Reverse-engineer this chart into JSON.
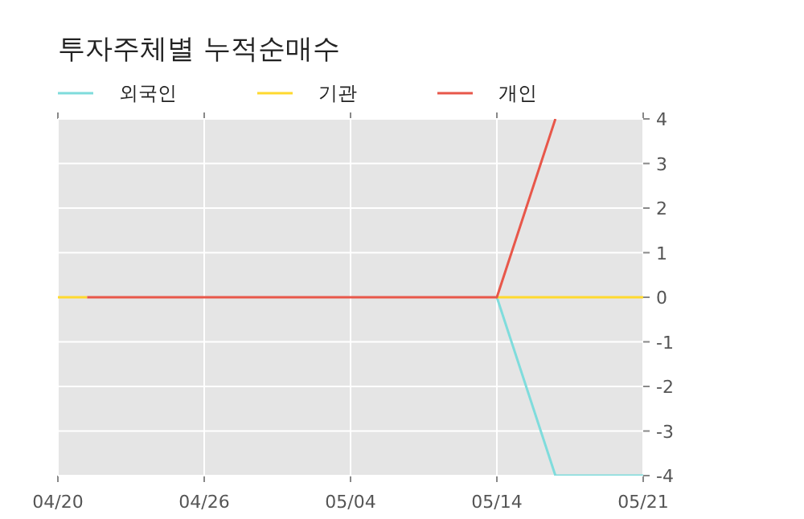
{
  "chart_data": {
    "type": "line",
    "title": "투자주체별 누적순매수",
    "categories": [
      "04/20",
      null,
      null,
      null,
      null,
      "04/26",
      null,
      null,
      null,
      null,
      "05/04",
      null,
      null,
      null,
      null,
      "05/14",
      null,
      null,
      null,
      null,
      "05/21"
    ],
    "series": [
      {
        "name": "외국인",
        "color": "#7fdcdc",
        "values": [
          null,
          null,
          null,
          null,
          null,
          null,
          null,
          null,
          null,
          null,
          null,
          null,
          null,
          null,
          null,
          0,
          -2,
          -4,
          -4,
          -4,
          -4
        ]
      },
      {
        "name": "기관",
        "color": "#ffd92f",
        "values": [
          0,
          0,
          null,
          null,
          null,
          null,
          null,
          null,
          null,
          null,
          null,
          null,
          null,
          null,
          null,
          0,
          0,
          0,
          0,
          0,
          0
        ]
      },
      {
        "name": "개인",
        "color": "#e8574a",
        "values": [
          null,
          0,
          0,
          0,
          0,
          0,
          0,
          0,
          0,
          0,
          0,
          0,
          0,
          0,
          0,
          0,
          2,
          4,
          null,
          null,
          null
        ]
      }
    ],
    "ylim": [
      -4,
      4
    ],
    "yticks": [
      -4,
      -3,
      -2,
      -1,
      0,
      1,
      2,
      3,
      4
    ],
    "grid": true,
    "legend": "top left",
    "marker": "none",
    "line_style": "solid"
  }
}
